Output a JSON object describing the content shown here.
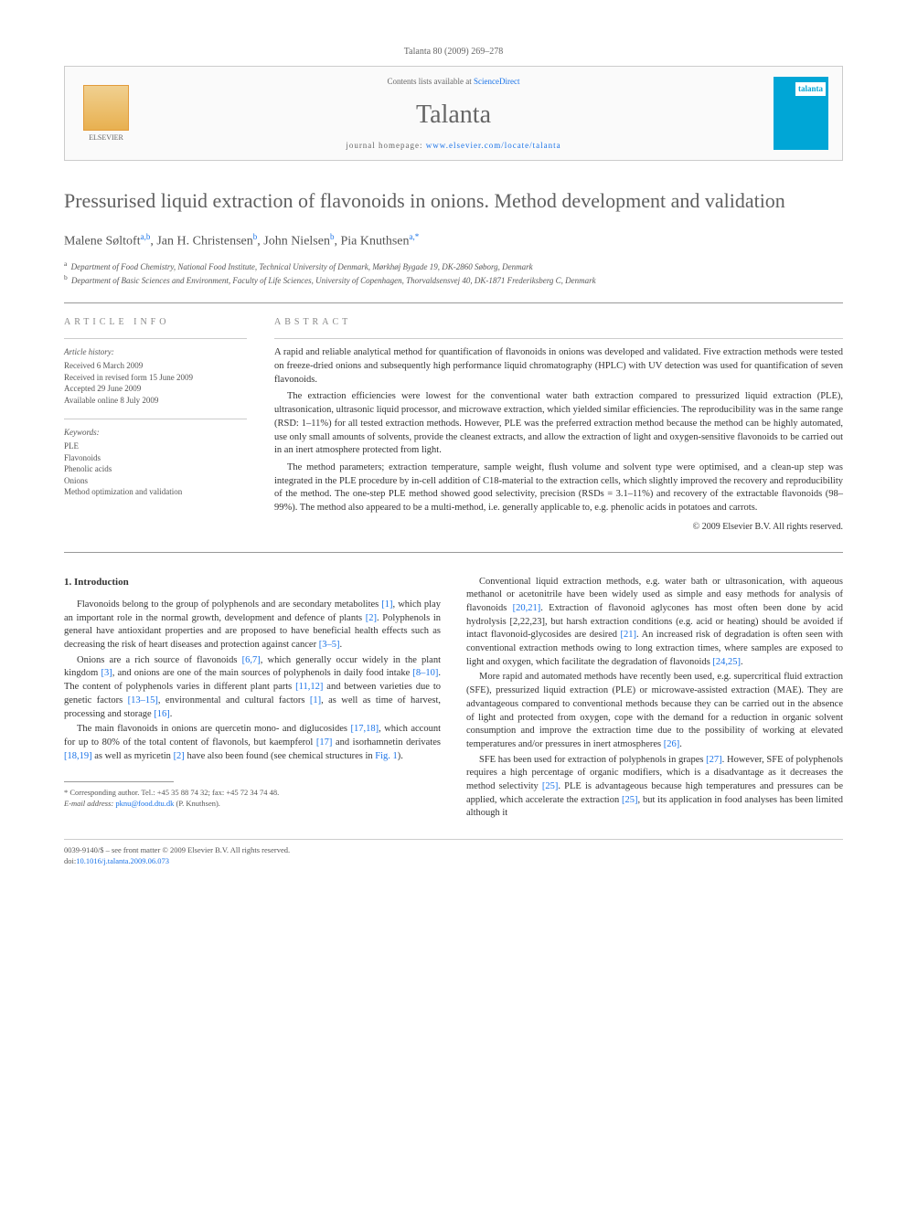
{
  "header": {
    "citation": "Talanta 80 (2009) 269–278",
    "contents_text": "Contents lists available at ",
    "contents_link": "ScienceDirect",
    "journal_name": "Talanta",
    "homepage_label": "journal homepage: ",
    "homepage_url": "www.elsevier.com/locate/talanta",
    "publisher": "ELSEVIER",
    "cover_label": "talanta"
  },
  "title": "Pressurised liquid extraction of flavonoids in onions. Method development and validation",
  "authors_html": "Malene Søltoft",
  "authors": [
    {
      "name": "Malene Søltoft",
      "aff": "a,b"
    },
    {
      "name": "Jan H. Christensen",
      "aff": "b"
    },
    {
      "name": "John Nielsen",
      "aff": "b"
    },
    {
      "name": "Pia Knuthsen",
      "aff": "a,*"
    }
  ],
  "affiliations": [
    {
      "sup": "a",
      "text": "Department of Food Chemistry, National Food Institute, Technical University of Denmark, Mørkhøj Bygade 19, DK-2860 Søborg, Denmark"
    },
    {
      "sup": "b",
      "text": "Department of Basic Sciences and Environment, Faculty of Life Sciences, University of Copenhagen, Thorvaldsensvej 40, DK-1871 Frederiksberg C, Denmark"
    }
  ],
  "info": {
    "heading": "ARTICLE INFO",
    "history_label": "Article history:",
    "history": [
      "Received 6 March 2009",
      "Received in revised form 15 June 2009",
      "Accepted 29 June 2009",
      "Available online 8 July 2009"
    ],
    "keywords_label": "Keywords:",
    "keywords": [
      "PLE",
      "Flavonoids",
      "Phenolic acids",
      "Onions",
      "Method optimization and validation"
    ]
  },
  "abstract": {
    "heading": "ABSTRACT",
    "paragraphs": [
      "A rapid and reliable analytical method for quantification of flavonoids in onions was developed and validated. Five extraction methods were tested on freeze-dried onions and subsequently high performance liquid chromatography (HPLC) with UV detection was used for quantification of seven flavonoids.",
      "The extraction efficiencies were lowest for the conventional water bath extraction compared to pressurized liquid extraction (PLE), ultrasonication, ultrasonic liquid processor, and microwave extraction, which yielded similar efficiencies. The reproducibility was in the same range (RSD: 1–11%) for all tested extraction methods. However, PLE was the preferred extraction method because the method can be highly automated, use only small amounts of solvents, provide the cleanest extracts, and allow the extraction of light and oxygen-sensitive flavonoids to be carried out in an inert atmosphere protected from light.",
      "The method parameters; extraction temperature, sample weight, flush volume and solvent type were optimised, and a clean-up step was integrated in the PLE procedure by in-cell addition of C18-material to the extraction cells, which slightly improved the recovery and reproducibility of the method. The one-step PLE method showed good selectivity, precision (RSDs = 3.1–11%) and recovery of the extractable flavonoids (98–99%). The method also appeared to be a multi-method, i.e. generally applicable to, e.g. phenolic acids in potatoes and carrots."
    ],
    "copyright": "© 2009 Elsevier B.V. All rights reserved."
  },
  "body": {
    "section_heading": "1. Introduction",
    "paragraphs": [
      "Flavonoids belong to the group of polyphenols and are secondary metabolites [1], which play an important role in the normal growth, development and defence of plants [2]. Polyphenols in general have antioxidant properties and are proposed to have beneficial health effects such as decreasing the risk of heart diseases and protection against cancer [3–5].",
      "Onions are a rich source of flavonoids [6,7], which generally occur widely in the plant kingdom [3], and onions are one of the main sources of polyphenols in daily food intake [8–10]. The content of polyphenols varies in different plant parts [11,12] and between varieties due to genetic factors [13–15], environmental and cultural factors [1], as well as time of harvest, processing and storage [16].",
      "The main flavonoids in onions are quercetin mono- and diglucosides [17,18], which account for up to 80% of the total content of flavonols, but kaempferol [17] and isorhamnetin derivates [18,19] as well as myricetin [2] have also been found (see chemical structures in Fig. 1).",
      "Conventional liquid extraction methods, e.g. water bath or ultrasonication, with aqueous methanol or acetonitrile have been widely used as simple and easy methods for analysis of flavonoids [20,21]. Extraction of flavonoid aglycones has most often been done by acid hydrolysis [2,22,23], but harsh extraction conditions (e.g. acid or heating) should be avoided if intact flavonoid-glycosides are desired [21]. An increased risk of degradation is often seen with conventional extraction methods owing to long extraction times, where samples are exposed to light and oxygen, which facilitate the degradation of flavonoids [24,25].",
      "More rapid and automated methods have recently been used, e.g. supercritical fluid extraction (SFE), pressurized liquid extraction (PLE) or microwave-assisted extraction (MAE). They are advantageous compared to conventional methods because they can be carried out in the absence of light and protected from oxygen, cope with the demand for a reduction in organic solvent consumption and improve the extraction time due to the possibility of working at elevated temperatures and/or pressures in inert atmospheres [26].",
      "SFE has been used for extraction of polyphenols in grapes [27]. However, SFE of polyphenols requires a high percentage of organic modifiers, which is a disadvantage as it decreases the method selectivity [25]. PLE is advantageous because high temperatures and pressures can be applied, which accelerate the extraction [25], but its application in food analyses has been limited although it"
    ]
  },
  "footnote": {
    "corresponding": "* Corresponding author. Tel.: +45 35 88 74 32; fax: +45 72 34 74 48.",
    "email_label": "E-mail address: ",
    "email": "pknu@food.dtu.dk",
    "email_person": " (P. Knuthsen)."
  },
  "footer": {
    "left_line1": "0039-9140/$ – see front matter © 2009 Elsevier B.V. All rights reserved.",
    "left_line2_label": "doi:",
    "left_line2_link": "10.1016/j.talanta.2009.06.073"
  },
  "colors": {
    "link": "#1a73e8",
    "cover": "#00a6d6",
    "text": "#333333",
    "muted": "#666666"
  }
}
